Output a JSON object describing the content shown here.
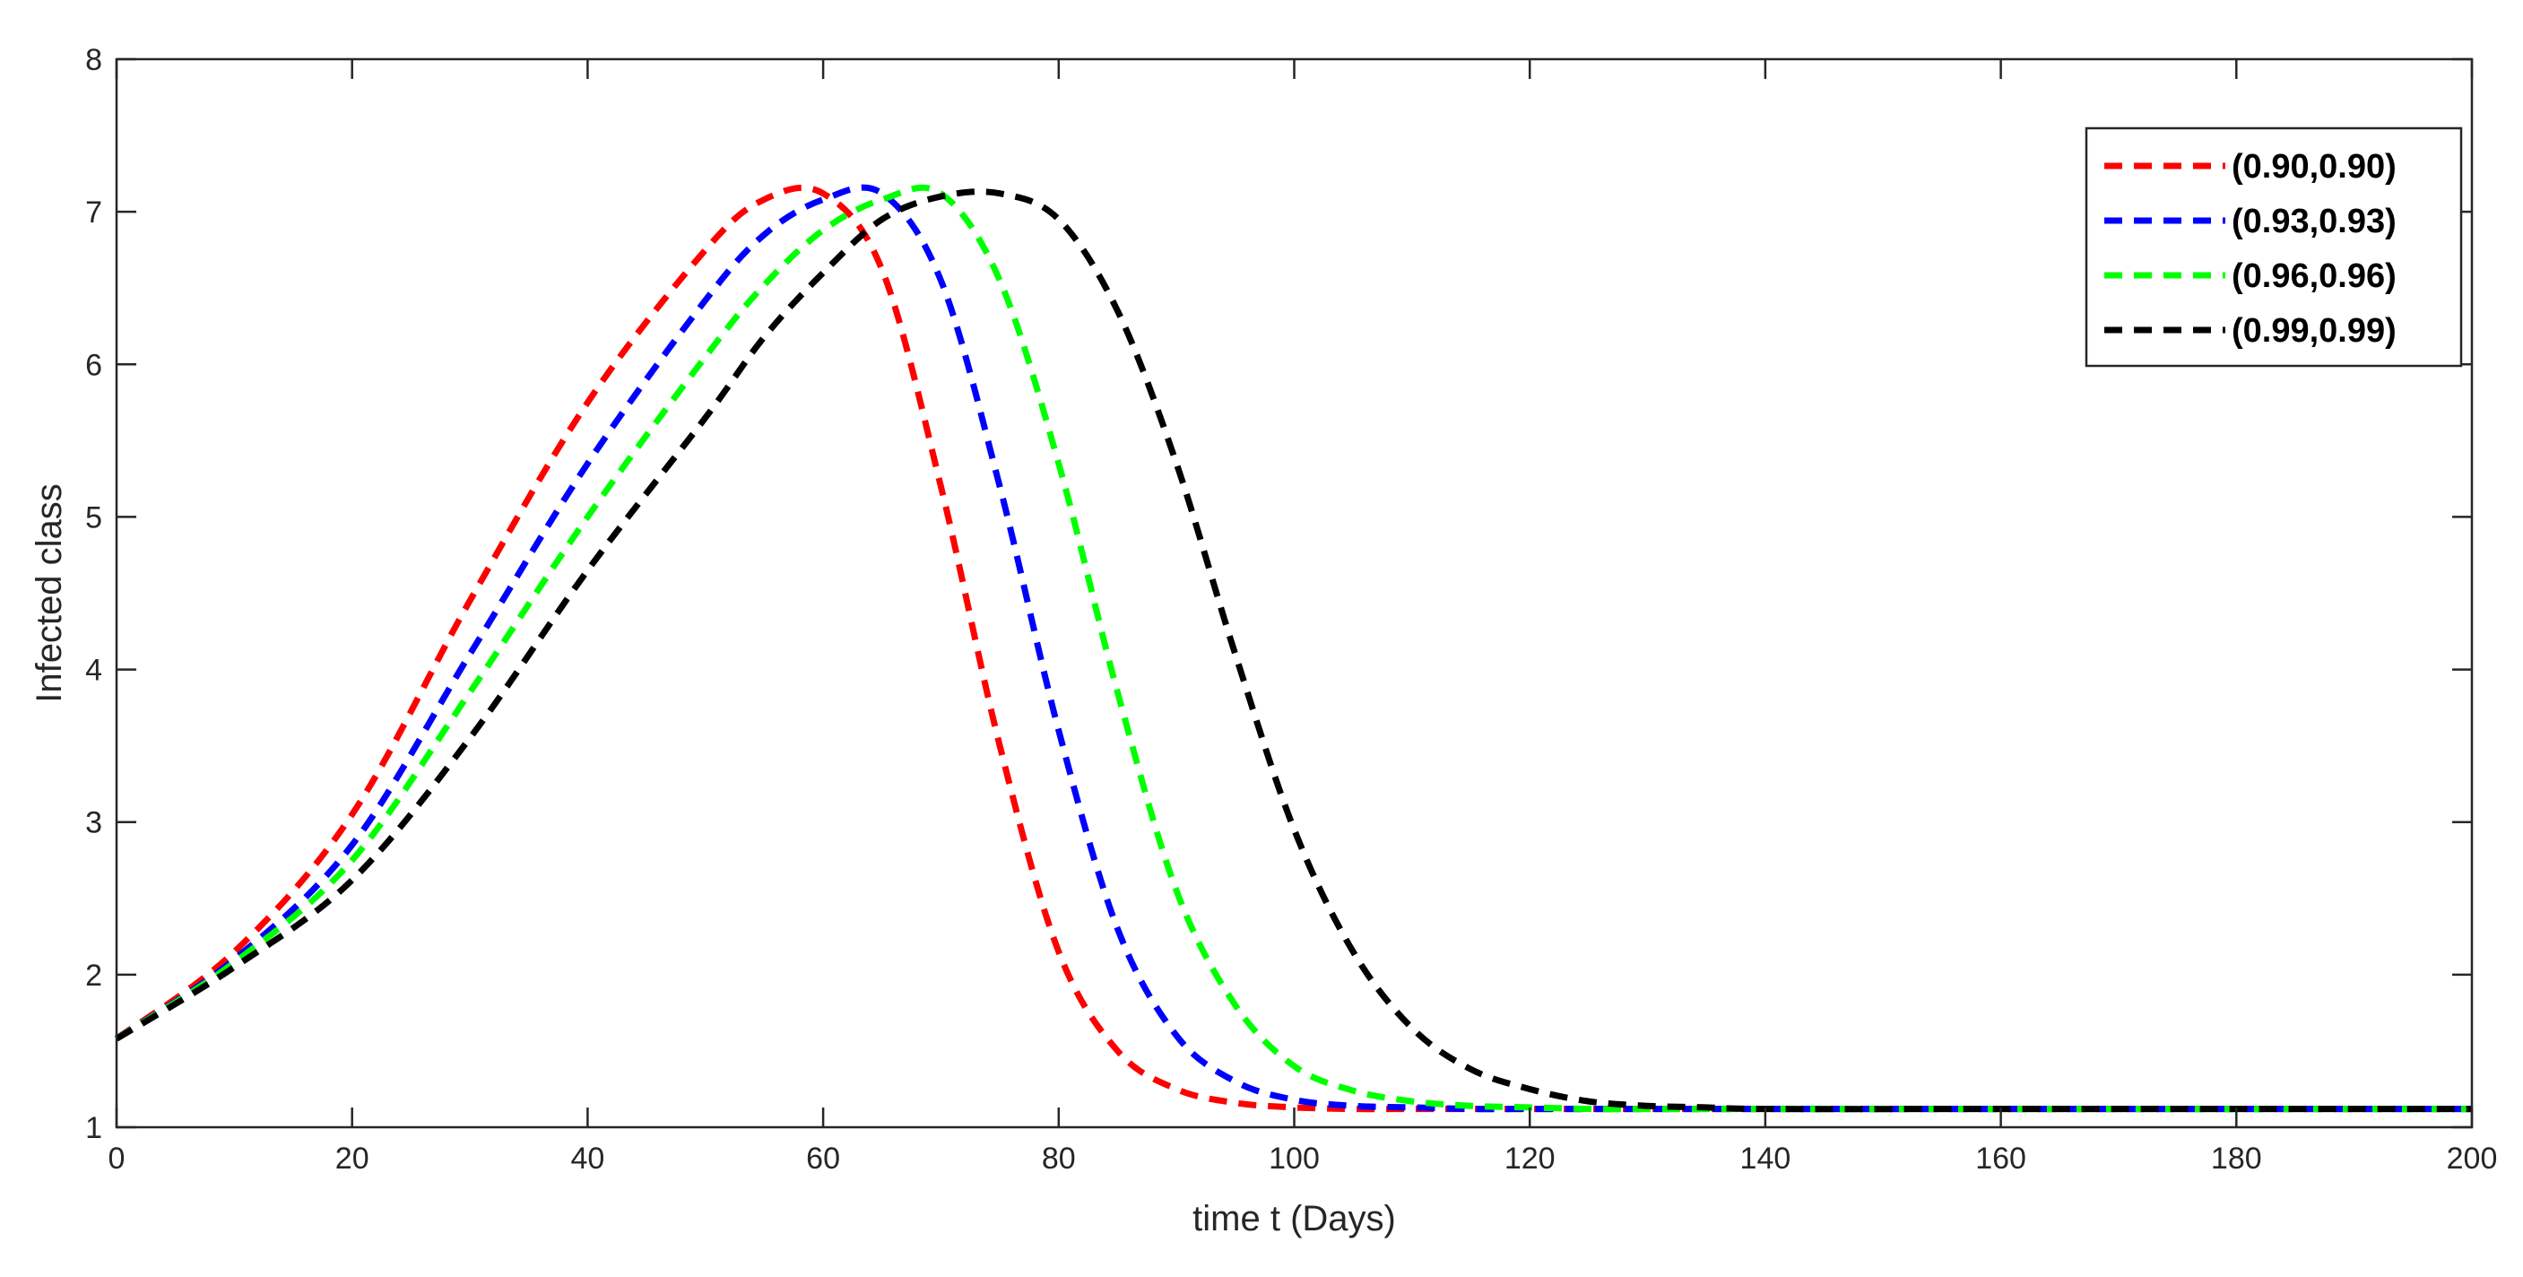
{
  "chart_data": {
    "type": "line",
    "title": "",
    "xlabel": "time t (Days)",
    "ylabel": "Infected class",
    "xlim": [
      0,
      200
    ],
    "ylim": [
      1,
      8
    ],
    "xticks": [
      0,
      20,
      40,
      60,
      80,
      100,
      120,
      140,
      160,
      180,
      200
    ],
    "yticks": [
      1,
      2,
      3,
      4,
      5,
      6,
      7,
      8
    ],
    "grid": false,
    "legend_position": "top-right",
    "x": [
      0,
      10,
      20,
      30,
      40,
      50,
      55,
      60,
      65,
      70,
      75,
      80,
      85,
      90,
      95,
      100,
      105,
      110,
      115,
      120,
      125,
      130,
      135,
      140,
      160,
      180,
      200
    ],
    "series": [
      {
        "name": "(0.90,0.90)",
        "color": "#ff0000",
        "style": "dashed",
        "values": [
          1.58,
          2.15,
          3.05,
          4.45,
          5.75,
          6.75,
          7.08,
          7.12,
          6.62,
          5.2,
          3.5,
          2.15,
          1.5,
          1.25,
          1.16,
          1.13,
          1.12,
          1.12,
          1.12,
          1.12,
          1.12,
          1.12,
          1.12,
          1.12,
          1.12,
          1.12,
          1.12
        ]
      },
      {
        "name": "(0.93,0.93)",
        "color": "#0000ff",
        "style": "dashed",
        "values": [
          1.58,
          2.1,
          2.85,
          4.1,
          5.35,
          6.42,
          6.85,
          7.08,
          7.12,
          6.55,
          5.2,
          3.6,
          2.3,
          1.6,
          1.3,
          1.18,
          1.14,
          1.13,
          1.12,
          1.12,
          1.12,
          1.12,
          1.12,
          1.12,
          1.12,
          1.12,
          1.12
        ]
      },
      {
        "name": "(0.96,0.96)",
        "color": "#00ff00",
        "style": "dashed",
        "values": [
          1.58,
          2.08,
          2.75,
          3.85,
          5.0,
          6.05,
          6.52,
          6.88,
          7.08,
          7.12,
          6.55,
          5.35,
          3.85,
          2.55,
          1.8,
          1.4,
          1.24,
          1.17,
          1.14,
          1.13,
          1.12,
          1.12,
          1.12,
          1.12,
          1.12,
          1.12,
          1.12
        ]
      },
      {
        "name": "(0.99,0.99)",
        "color": "#000000",
        "style": "dashed",
        "values": [
          1.58,
          2.05,
          2.62,
          3.55,
          4.65,
          5.65,
          6.18,
          6.6,
          6.95,
          7.1,
          7.12,
          6.95,
          6.35,
          5.35,
          4.1,
          2.95,
          2.15,
          1.65,
          1.38,
          1.25,
          1.17,
          1.14,
          1.13,
          1.12,
          1.12,
          1.12,
          1.12
        ]
      }
    ]
  }
}
